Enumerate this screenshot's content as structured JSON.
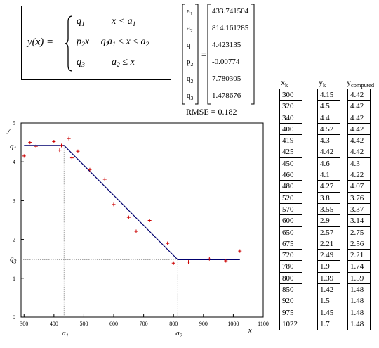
{
  "formula": {
    "lhs": "y(x) =",
    "cases": [
      {
        "expr": "q1",
        "cond": "x < a1"
      },
      {
        "expr": "p2 x + q2",
        "cond": "a1 ≤ x ≤ a2"
      },
      {
        "expr": "q3",
        "cond": "a2 ≤ x"
      }
    ]
  },
  "params": {
    "labels": [
      "a1",
      "a2",
      "q1",
      "p2",
      "q2",
      "q3"
    ],
    "values": [
      "433.741504",
      "814.161285",
      "4.423135",
      "-0.00774",
      "7.780305",
      "1.478676"
    ],
    "equals": "="
  },
  "rmse": "RMSE = 0.182",
  "table": {
    "headers": {
      "x": "x",
      "x_sub": "k",
      "y": "y",
      "y_sub": "k",
      "yc": "y",
      "yc_sub": "computed"
    },
    "x": [
      "300",
      "320",
      "340",
      "400",
      "419",
      "425",
      "450",
      "460",
      "480",
      "520",
      "570",
      "600",
      "650",
      "675",
      "720",
      "780",
      "800",
      "850",
      "920",
      "975",
      "1022"
    ],
    "y": [
      "4.15",
      "4.5",
      "4.4",
      "4.52",
      "4.3",
      "4.42",
      "4.6",
      "4.1",
      "4.27",
      "3.8",
      "3.55",
      "2.9",
      "2.57",
      "2.21",
      "2.49",
      "1.9",
      "1.39",
      "1.42",
      "1.5",
      "1.45",
      "1.7"
    ],
    "yc": [
      "4.42",
      "4.42",
      "4.42",
      "4.42",
      "4.42",
      "4.42",
      "4.3",
      "4.22",
      "4.07",
      "3.76",
      "3.37",
      "3.14",
      "2.75",
      "2.56",
      "2.21",
      "1.74",
      "1.59",
      "1.48",
      "1.48",
      "1.48",
      "1.48"
    ]
  },
  "chart_data": {
    "type": "scatter",
    "xlim": [
      290,
      1100
    ],
    "ylim": [
      0,
      5
    ],
    "x_ticks": [
      300,
      400,
      500,
      600,
      700,
      800,
      900,
      1000,
      1100
    ],
    "y_ticks": [
      0,
      1,
      2,
      3,
      4,
      5
    ],
    "xlabel": "x",
    "ylabel": "y",
    "points": {
      "x": [
        300,
        320,
        340,
        400,
        419,
        425,
        450,
        460,
        480,
        520,
        570,
        600,
        650,
        675,
        720,
        780,
        800,
        850,
        920,
        975,
        1022
      ],
      "y": [
        4.15,
        4.5,
        4.4,
        4.52,
        4.3,
        4.42,
        4.6,
        4.1,
        4.27,
        3.8,
        3.55,
        2.9,
        2.57,
        2.21,
        2.49,
        1.9,
        1.39,
        1.42,
        1.5,
        1.45,
        1.7
      ]
    },
    "fit_line": {
      "x": [
        300,
        433.741504,
        814.161285,
        1022
      ],
      "y": [
        4.423135,
        4.423135,
        1.478676,
        1.478676
      ]
    },
    "annotations": {
      "q1": "q1",
      "q3": "q3",
      "a1": "a1",
      "a2": "a2"
    },
    "colors": {
      "points": "#cc0000",
      "fit": "#00006e",
      "guides": "#888888"
    }
  }
}
